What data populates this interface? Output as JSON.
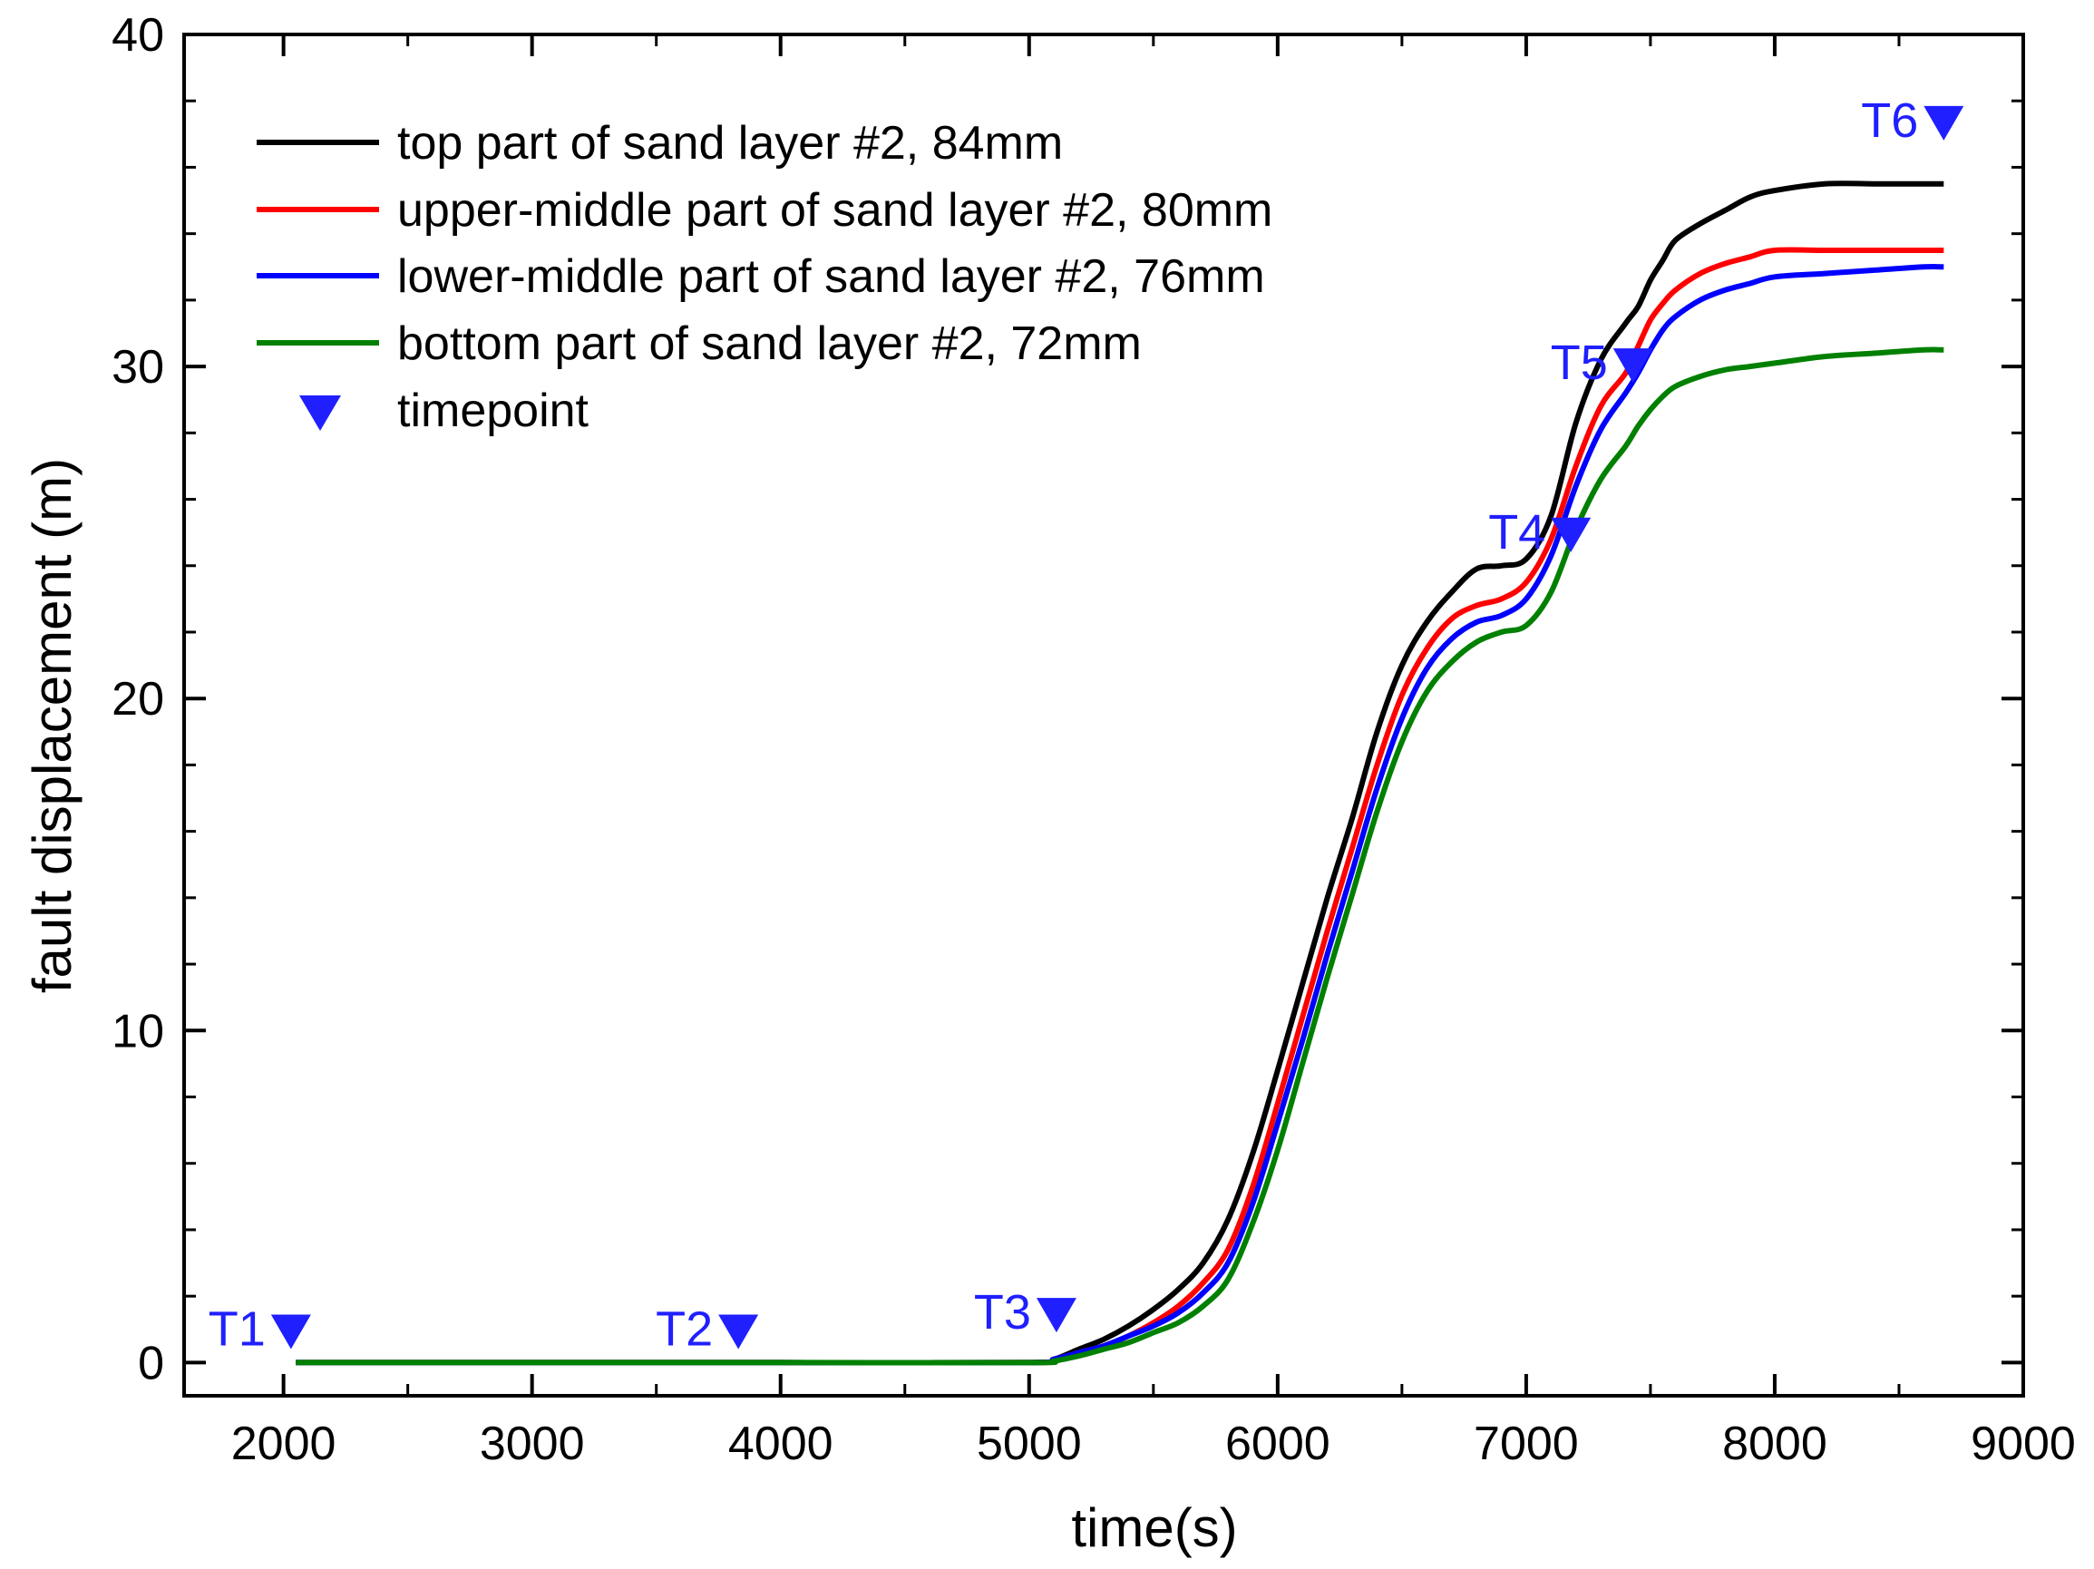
{
  "chart_data": {
    "type": "line",
    "title": "",
    "xlabel": "time(s)",
    "ylabel": "fault displacement (m)",
    "xlim": [
      1600,
      9000
    ],
    "ylim": [
      -1,
      40
    ],
    "xticks": [
      2000,
      3000,
      4000,
      5000,
      6000,
      7000,
      8000,
      9000
    ],
    "yticks": [
      0,
      10,
      20,
      30,
      40
    ],
    "legend_position": "top-left",
    "series": [
      {
        "name": "top part of sand layer #2, 84mm",
        "color": "#000000",
        "x": [
          2050,
          3000,
          4000,
          5000,
          5100,
          5200,
          5300,
          5400,
          5500,
          5600,
          5700,
          5800,
          5900,
          6000,
          6100,
          6200,
          6300,
          6400,
          6500,
          6600,
          6700,
          6800,
          6900,
          7000,
          7100,
          7200,
          7300,
          7400,
          7450,
          7500,
          7550,
          7600,
          7700,
          7800,
          7900,
          8000,
          8200,
          8400,
          8600,
          8680
        ],
        "y": [
          0,
          0,
          0,
          0,
          0.1,
          0.4,
          0.7,
          1.1,
          1.6,
          2.2,
          3.0,
          4.3,
          6.3,
          8.8,
          11.4,
          14.0,
          16.4,
          19.0,
          21.0,
          22.3,
          23.2,
          23.9,
          24.0,
          24.2,
          25.5,
          28.3,
          30.2,
          31.3,
          31.8,
          32.6,
          33.2,
          33.8,
          34.3,
          34.7,
          35.1,
          35.3,
          35.5,
          35.5,
          35.5,
          35.5
        ]
      },
      {
        "name": "upper-middle part of sand layer #2, 80mm",
        "color": "#ff0000",
        "x": [
          2050,
          3000,
          4000,
          5000,
          5100,
          5200,
          5300,
          5400,
          5500,
          5600,
          5700,
          5800,
          5900,
          6000,
          6100,
          6200,
          6300,
          6400,
          6500,
          6600,
          6700,
          6800,
          6900,
          7000,
          7100,
          7200,
          7300,
          7400,
          7450,
          7500,
          7550,
          7600,
          7700,
          7800,
          7900,
          8000,
          8200,
          8400,
          8600,
          8680
        ],
        "y": [
          0,
          0,
          0,
          0,
          0.1,
          0.3,
          0.5,
          0.8,
          1.2,
          1.7,
          2.4,
          3.4,
          5.3,
          7.8,
          10.4,
          13.0,
          15.5,
          18.0,
          20.1,
          21.5,
          22.4,
          22.8,
          23.0,
          23.5,
          24.8,
          27.0,
          28.8,
          29.8,
          30.6,
          31.4,
          31.9,
          32.3,
          32.8,
          33.1,
          33.3,
          33.5,
          33.5,
          33.5,
          33.5,
          33.5
        ]
      },
      {
        "name": "lower-middle part of sand layer #2, 76mm",
        "color": "#0000ff",
        "x": [
          2050,
          3000,
          4000,
          5000,
          5100,
          5200,
          5300,
          5400,
          5500,
          5600,
          5700,
          5800,
          5900,
          6000,
          6100,
          6200,
          6300,
          6400,
          6500,
          6600,
          6700,
          6800,
          6900,
          7000,
          7100,
          7200,
          7300,
          7400,
          7450,
          7500,
          7550,
          7600,
          7700,
          7800,
          7900,
          8000,
          8200,
          8400,
          8600,
          8680
        ],
        "y": [
          0,
          0,
          0,
          0,
          0.1,
          0.3,
          0.5,
          0.8,
          1.1,
          1.5,
          2.1,
          3.0,
          4.8,
          7.2,
          9.7,
          12.3,
          14.8,
          17.3,
          19.4,
          20.9,
          21.8,
          22.3,
          22.5,
          23.0,
          24.3,
          26.4,
          28.1,
          29.2,
          29.8,
          30.5,
          31.1,
          31.5,
          32.0,
          32.3,
          32.5,
          32.7,
          32.8,
          32.9,
          33.0,
          33.0
        ]
      },
      {
        "name": "bottom part of sand layer #2, 72mm",
        "color": "#008000",
        "x": [
          2050,
          3000,
          4000,
          5000,
          5100,
          5200,
          5300,
          5400,
          5500,
          5600,
          5700,
          5800,
          5900,
          6000,
          6100,
          6200,
          6300,
          6400,
          6500,
          6600,
          6700,
          6800,
          6900,
          7000,
          7100,
          7200,
          7300,
          7400,
          7450,
          7500,
          7550,
          7600,
          7700,
          7800,
          7900,
          8000,
          8200,
          8400,
          8600,
          8680
        ],
        "y": [
          0,
          0,
          0,
          0,
          0.05,
          0.2,
          0.4,
          0.6,
          0.9,
          1.2,
          1.7,
          2.5,
          4.2,
          6.4,
          9.0,
          11.6,
          14.1,
          16.6,
          18.7,
          20.2,
          21.1,
          21.7,
          22.0,
          22.2,
          23.2,
          25.1,
          26.6,
          27.6,
          28.2,
          28.7,
          29.1,
          29.4,
          29.7,
          29.9,
          30.0,
          30.1,
          30.3,
          30.4,
          30.5,
          30.5
        ]
      }
    ],
    "timepoint_legend": "timepoint",
    "timepoints": [
      {
        "label": "T1",
        "x": 2030,
        "y": 0.9
      },
      {
        "label": "T2",
        "x": 3830,
        "y": 0.9
      },
      {
        "label": "T3",
        "x": 5110,
        "y": 1.4
      },
      {
        "label": "T4",
        "x": 7180,
        "y": 24.9
      },
      {
        "label": "T5",
        "x": 7430,
        "y": 30.0
      },
      {
        "label": "T6",
        "x": 8680,
        "y": 37.3
      }
    ],
    "timepoint_color": "#1f1fff"
  }
}
